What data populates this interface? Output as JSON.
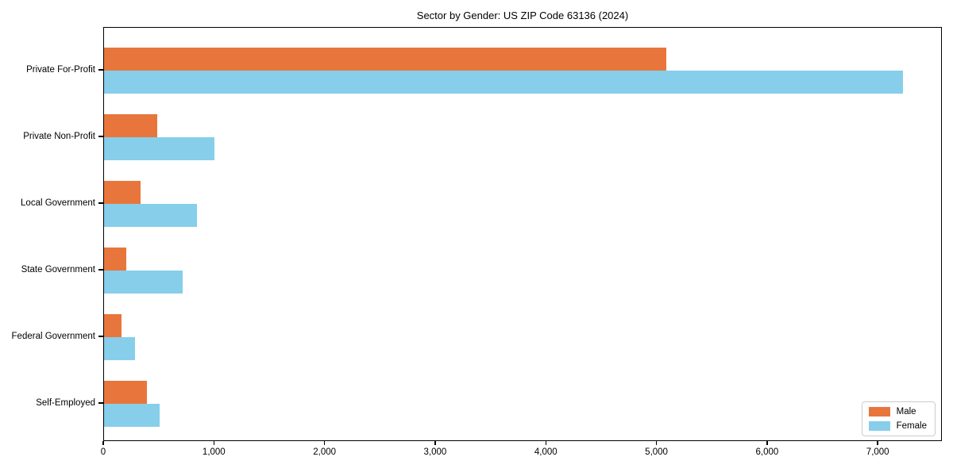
{
  "chart_data": {
    "type": "bar",
    "orientation": "horizontal",
    "title": "Sector by Gender: US ZIP Code 63136 (2024)",
    "categories": [
      "Private For-Profit",
      "Private Non-Profit",
      "Local Government",
      "State Government",
      "Federal Government",
      "Self-Employed"
    ],
    "series": [
      {
        "name": "Male",
        "color": "#e8763c",
        "values": [
          5080,
          480,
          330,
          200,
          160,
          390
        ]
      },
      {
        "name": "Female",
        "color": "#87ceeb",
        "values": [
          7220,
          1000,
          840,
          710,
          280,
          500
        ]
      }
    ],
    "xlabel": "",
    "ylabel": "",
    "xlim": [
      0,
      7580
    ],
    "xticks": [
      0,
      1000,
      2000,
      3000,
      4000,
      5000,
      6000,
      7000
    ],
    "xtick_labels": [
      "0",
      "1,000",
      "2,000",
      "3,000",
      "4,000",
      "5,000",
      "6,000",
      "7,000"
    ],
    "grid": false,
    "legend": {
      "position": "lower right"
    }
  }
}
